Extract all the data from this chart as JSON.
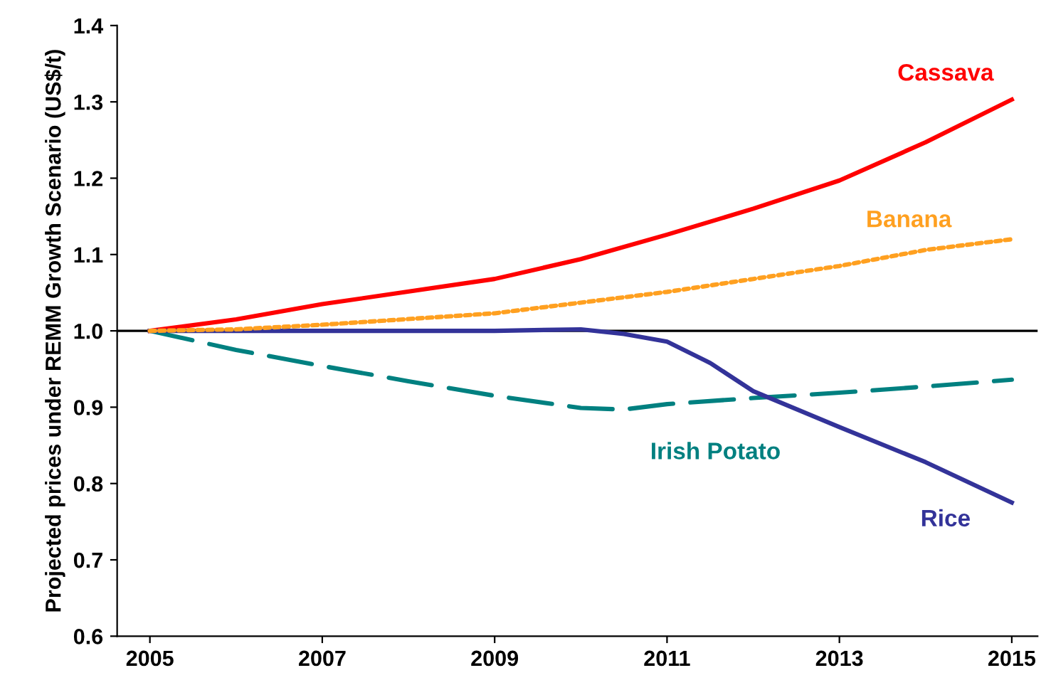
{
  "chart_data": {
    "type": "line",
    "ylabel": "Projected prices under REMM Growth Scenario (US$/t)",
    "xlim": [
      2004.62,
      2015.3
    ],
    "xticks": [
      2005,
      2007,
      2009,
      2011,
      2013,
      2015
    ],
    "ylim": [
      0.6,
      1.4
    ],
    "yticks": [
      0.6,
      0.7,
      0.8,
      0.9,
      {
        "value": 1.0,
        "label": "1.0"
      },
      1.1,
      1.2,
      1.3,
      1.4
    ],
    "grid": false,
    "legend": false,
    "marker": "none",
    "ref_lines": [
      {
        "axis": "y",
        "value": 1.0,
        "color": "#000000",
        "line_style": "solid"
      }
    ],
    "series": [
      {
        "name": "Cassava",
        "color": "#ff0000",
        "line_style": "solid",
        "x": [
          2005,
          2006,
          2007,
          2009,
          2010,
          2011,
          2012,
          2013,
          2014,
          2015
        ],
        "values": [
          1.0,
          1.015,
          1.035,
          1.068,
          1.094,
          1.126,
          1.16,
          1.197,
          1.247,
          1.303
        ]
      },
      {
        "name": "Banana",
        "color": "#ffa020",
        "line_style": "dotted",
        "x": [
          2005,
          2006,
          2007,
          2009,
          2010,
          2011,
          2012,
          2013,
          2014,
          2015
        ],
        "values": [
          1.0,
          1.002,
          1.008,
          1.023,
          1.037,
          1.051,
          1.068,
          1.085,
          1.106,
          1.12
        ]
      },
      {
        "name": "Irish Potato",
        "color": "#008080",
        "line_style": "dashed",
        "x": [
          2005,
          2006,
          2007,
          2008,
          2009,
          2010,
          2010.5,
          2011,
          2012,
          2013,
          2014,
          2015
        ],
        "values": [
          1.0,
          0.975,
          0.954,
          0.934,
          0.915,
          0.899,
          0.897,
          0.904,
          0.912,
          0.919,
          0.927,
          0.936
        ]
      },
      {
        "name": "Rice",
        "color": "#333399",
        "line_style": "solid",
        "x": [
          2005,
          2007,
          2009,
          2010,
          2010.5,
          2011,
          2011.5,
          2012,
          2013,
          2014,
          2015
        ],
        "values": [
          1.0,
          1.0,
          1.0,
          1.002,
          0.996,
          0.986,
          0.958,
          0.921,
          0.874,
          0.828,
          0.775
        ]
      }
    ]
  }
}
